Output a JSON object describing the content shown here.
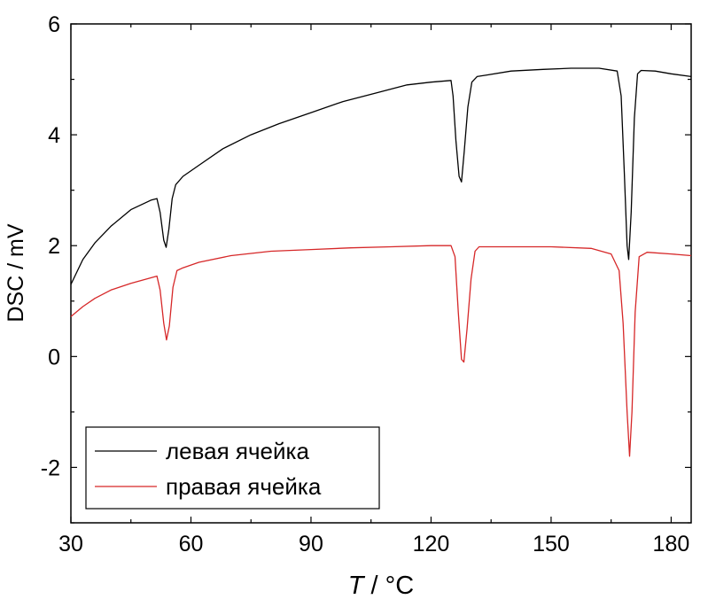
{
  "chart_data": {
    "type": "line",
    "xlabel_var": "T",
    "xlabel_unit": " / °C",
    "ylabel": "DSC / mV",
    "xlim": [
      30,
      185
    ],
    "ylim": [
      -3,
      6
    ],
    "xticks": [
      "30",
      "60",
      "90",
      "120",
      "150",
      "180"
    ],
    "yticks": [
      "-2",
      "0",
      "2",
      "4",
      "6"
    ],
    "legend_position": "bottom-left",
    "series": [
      {
        "name": "левая ячейка",
        "color": "#000000",
        "x": [
          30,
          33,
          36,
          40,
          45,
          50,
          51.5,
          52.3,
          53.2,
          53.8,
          54.5,
          55.3,
          56.2,
          58,
          62,
          68,
          75,
          82,
          90,
          98,
          106,
          114,
          120,
          125,
          125.5,
          126.2,
          127,
          127.6,
          128.3,
          129.2,
          130.2,
          131.5,
          134,
          140,
          148,
          155,
          162,
          166.5,
          167.5,
          168.3,
          169,
          169.4,
          170,
          170.8,
          171.6,
          172.5,
          176,
          180,
          185
        ],
        "y": [
          1.3,
          1.75,
          2.05,
          2.35,
          2.65,
          2.82,
          2.85,
          2.6,
          2.1,
          1.97,
          2.3,
          2.85,
          3.1,
          3.25,
          3.45,
          3.75,
          4.0,
          4.2,
          4.4,
          4.6,
          4.75,
          4.9,
          4.95,
          4.98,
          4.7,
          3.9,
          3.25,
          3.15,
          3.7,
          4.5,
          4.95,
          5.05,
          5.08,
          5.15,
          5.18,
          5.2,
          5.2,
          5.15,
          4.7,
          3.3,
          2.0,
          1.75,
          2.6,
          4.3,
          5.1,
          5.16,
          5.15,
          5.1,
          5.05
        ]
      },
      {
        "name": "правая ячейка",
        "color": "#d62728",
        "x": [
          30,
          33,
          36,
          40,
          45,
          50,
          51.5,
          52.3,
          53.2,
          53.9,
          54.6,
          55.5,
          56.5,
          58,
          62,
          70,
          80,
          90,
          100,
          110,
          120,
          125,
          126,
          126.8,
          127.6,
          128.2,
          129,
          130,
          131,
          132,
          134,
          140,
          150,
          160,
          165,
          167,
          168,
          169,
          169.6,
          170.2,
          171,
          172,
          174,
          180,
          185
        ],
        "y": [
          0.72,
          0.9,
          1.05,
          1.2,
          1.32,
          1.42,
          1.45,
          1.2,
          0.6,
          0.3,
          0.55,
          1.25,
          1.55,
          1.6,
          1.7,
          1.82,
          1.9,
          1.93,
          1.96,
          1.98,
          2.0,
          2.0,
          1.8,
          0.8,
          -0.05,
          -0.1,
          0.5,
          1.4,
          1.9,
          1.98,
          1.98,
          1.98,
          1.98,
          1.95,
          1.85,
          1.55,
          0.6,
          -1.0,
          -1.8,
          -1.0,
          0.8,
          1.8,
          1.88,
          1.85,
          1.82
        ]
      }
    ]
  }
}
